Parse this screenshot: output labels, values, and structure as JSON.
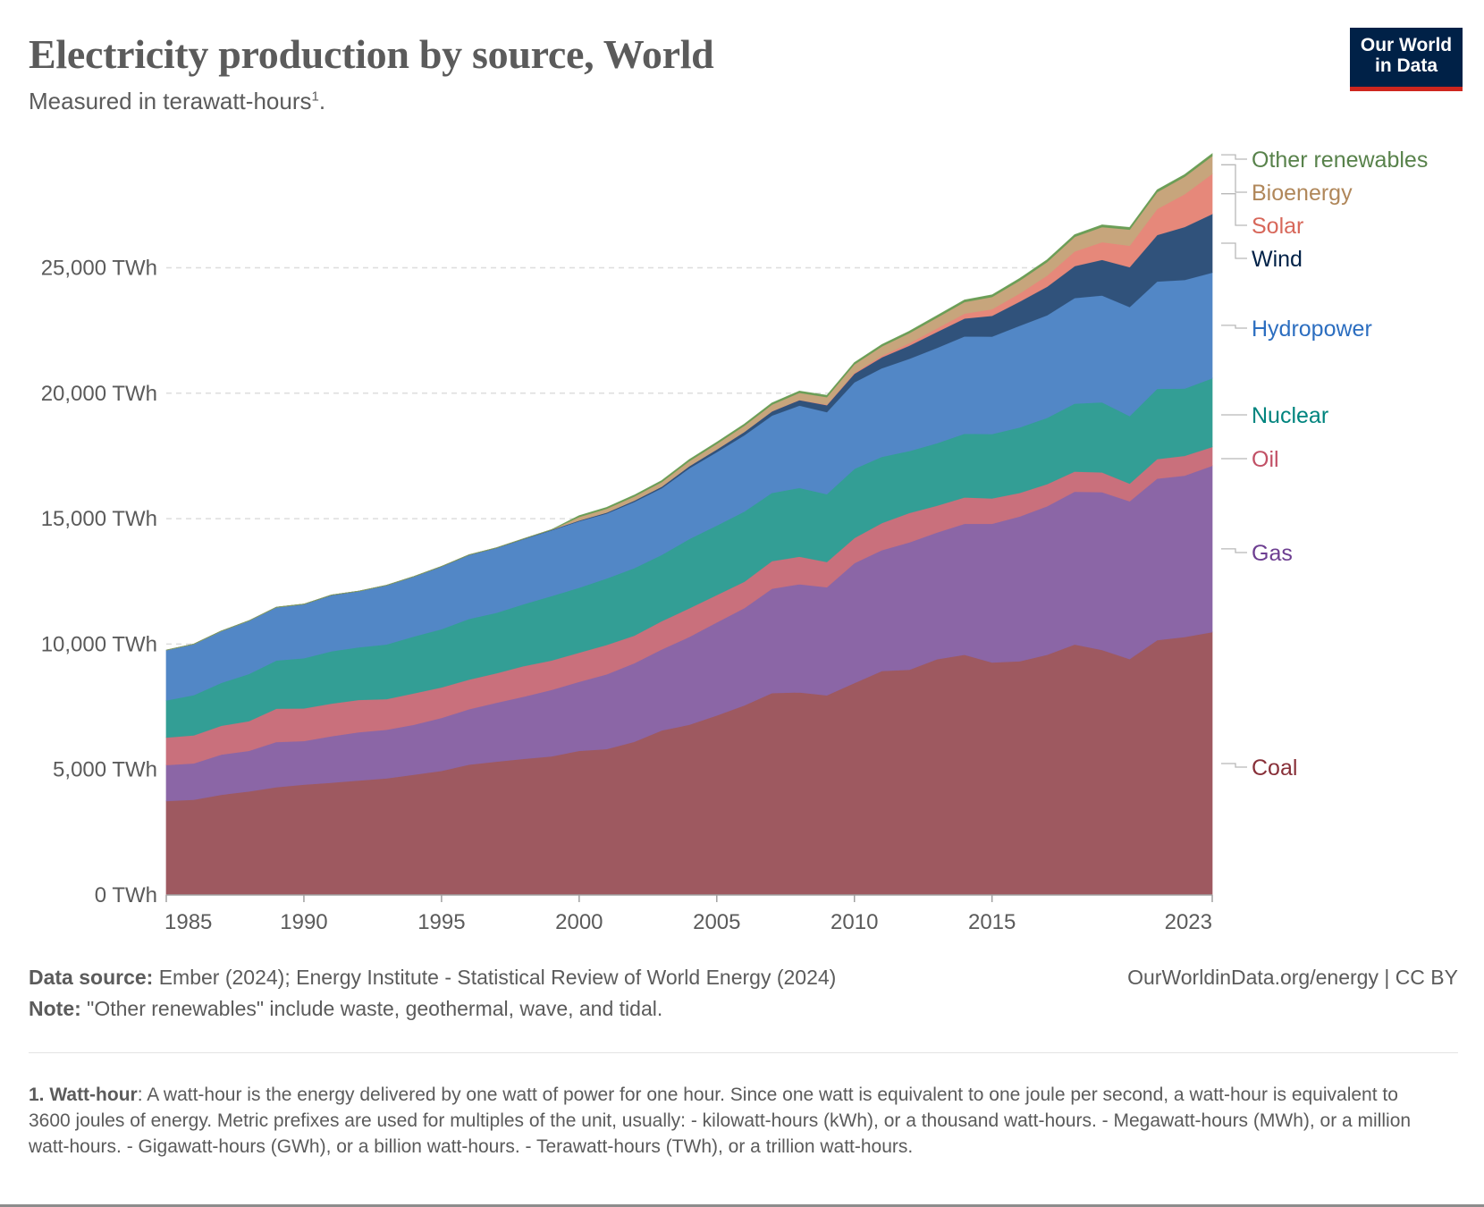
{
  "header": {
    "title": "Electricity production by source, World",
    "subtitle": "Measured in terawatt-hours",
    "subtitle_footnote_mark": "1",
    "subtitle_end": ".",
    "logo_line1": "Our World",
    "logo_line2": "in Data"
  },
  "footer": {
    "source_label": "Data source:",
    "source_text": " Ember (2024); Energy Institute - Statistical Review of World Energy (2024)",
    "note_label": "Note:",
    "note_text": " \"Other renewables\" include waste, geothermal, wave, and tidal.",
    "credit": "OurWorldinData.org/energy | CC BY",
    "footnote_label": "1. Watt-hour",
    "footnote_text": ": A watt-hour is the energy delivered by one watt of power for one hour. Since one watt is equivalent to one joule per second, a watt-hour is equivalent to 3600 joules of energy. Metric prefixes are used for multiples of the unit, usually: - kilowatt-hours (kWh), or a thousand watt-hours. - Megawatt-hours (MWh), or a million watt-hours. - Gigawatt-hours (GWh), or a billion watt-hours. - Terawatt-hours (TWh), or a trillion watt-hours."
  },
  "chart_data": {
    "type": "area",
    "stacked": true,
    "title": "Electricity production by source, World",
    "xlabel": "",
    "ylabel": "TWh",
    "xlim": [
      1985,
      2023
    ],
    "ylim": [
      0,
      29500
    ],
    "grid": "horizontal-dashed",
    "legend": "right (inline labels)",
    "x_ticks": [
      "1985",
      "1990",
      "1995",
      "2000",
      "2005",
      "2010",
      "2015",
      "2023"
    ],
    "x_tick_values": [
      1985,
      1990,
      1995,
      2000,
      2005,
      2010,
      2015,
      2023
    ],
    "y_ticks": [
      "0 TWh",
      "5,000 TWh",
      "10,000 TWh",
      "15,000 TWh",
      "20,000 TWh",
      "25,000 TWh"
    ],
    "y_tick_values": [
      0,
      5000,
      10000,
      15000,
      20000,
      25000
    ],
    "x": [
      1985,
      1986,
      1987,
      1988,
      1989,
      1990,
      1991,
      1992,
      1993,
      1994,
      1995,
      1996,
      1997,
      1998,
      1999,
      2000,
      2001,
      2002,
      2003,
      2004,
      2005,
      2006,
      2007,
      2008,
      2009,
      2010,
      2011,
      2012,
      2013,
      2014,
      2015,
      2016,
      2017,
      2018,
      2019,
      2020,
      2021,
      2022,
      2023
    ],
    "series": [
      {
        "name": "Coal",
        "color": "#9e5960",
        "label_color": "#883039",
        "values": [
          3750,
          3800,
          4000,
          4130,
          4300,
          4400,
          4480,
          4570,
          4650,
          4800,
          4950,
          5200,
          5320,
          5430,
          5530,
          5750,
          5820,
          6110,
          6560,
          6790,
          7160,
          7560,
          8050,
          8080,
          7960,
          8450,
          8930,
          8980,
          9400,
          9580,
          9270,
          9320,
          9580,
          9990,
          9770,
          9410,
          10160,
          10290,
          10480
        ]
      },
      {
        "name": "Gas",
        "color": "#8b66a6",
        "label_color": "#6d3e91",
        "values": [
          1430,
          1450,
          1600,
          1620,
          1800,
          1740,
          1850,
          1920,
          1940,
          1990,
          2110,
          2210,
          2350,
          2480,
          2650,
          2750,
          2980,
          3130,
          3230,
          3500,
          3710,
          3880,
          4160,
          4310,
          4310,
          4780,
          4820,
          5080,
          5050,
          5220,
          5530,
          5770,
          5920,
          6090,
          6290,
          6290,
          6440,
          6430,
          6630
        ]
      },
      {
        "name": "Oil",
        "color": "#c9707c",
        "label_color": "#c15065",
        "values": [
          1100,
          1120,
          1150,
          1180,
          1330,
          1300,
          1300,
          1290,
          1220,
          1250,
          1220,
          1180,
          1170,
          1220,
          1170,
          1160,
          1170,
          1100,
          1130,
          1140,
          1090,
          1050,
          1100,
          1100,
          1010,
          1000,
          1080,
          1170,
          1070,
          1050,
          1010,
          940,
          880,
          800,
          790,
          700,
          780,
          790,
          750
        ]
      },
      {
        "name": "Nuclear",
        "color": "#339e95",
        "label_color": "#00847e",
        "values": [
          1480,
          1600,
          1710,
          1880,
          1920,
          2000,
          2090,
          2100,
          2180,
          2270,
          2320,
          2420,
          2410,
          2470,
          2570,
          2590,
          2650,
          2690,
          2640,
          2760,
          2770,
          2800,
          2720,
          2740,
          2700,
          2760,
          2640,
          2470,
          2490,
          2540,
          2570,
          2610,
          2640,
          2710,
          2790,
          2690,
          2800,
          2680,
          2740
        ]
      },
      {
        "name": "Hydropower",
        "color": "#5287c6",
        "label_color": "#2c6ec0",
        "values": [
          2000,
          2030,
          2060,
          2120,
          2120,
          2150,
          2230,
          2230,
          2350,
          2380,
          2490,
          2540,
          2580,
          2590,
          2620,
          2650,
          2590,
          2640,
          2660,
          2820,
          2930,
          3040,
          3080,
          3280,
          3270,
          3450,
          3530,
          3680,
          3800,
          3880,
          3880,
          4050,
          4090,
          4210,
          4260,
          4350,
          4280,
          4330,
          4210
        ]
      },
      {
        "name": "Wind",
        "color": "#30527b",
        "label_color": "#002147",
        "values": [
          0,
          0,
          0,
          0,
          0,
          4,
          5,
          5,
          6,
          7,
          8,
          9,
          12,
          16,
          21,
          31,
          38,
          52,
          63,
          85,
          104,
          133,
          170,
          219,
          276,
          342,
          437,
          522,
          640,
          712,
          831,
          962,
          1140,
          1270,
          1420,
          1590,
          1850,
          2110,
          2340
        ]
      },
      {
        "name": "Solar",
        "color": "#e6887a",
        "label_color": "#d7675a",
        "values": [
          0,
          0,
          0,
          0,
          0,
          0,
          0,
          0,
          0,
          0,
          0,
          0,
          0,
          0,
          0,
          1,
          1,
          2,
          2,
          3,
          4,
          6,
          8,
          12,
          21,
          33,
          64,
          100,
          140,
          198,
          261,
          330,
          446,
          585,
          705,
          855,
          1040,
          1310,
          1600
        ]
      },
      {
        "name": "Bioenergy",
        "color": "#c7a57c",
        "label_color": "#b0875a",
        "values": [
          0,
          0,
          0,
          0,
          0,
          0,
          0,
          0,
          0,
          0,
          0,
          0,
          0,
          0,
          0,
          140,
          150,
          160,
          180,
          200,
          220,
          240,
          260,
          280,
          300,
          340,
          370,
          400,
          430,
          460,
          490,
          510,
          540,
          580,
          600,
          640,
          670,
          690,
          710
        ]
      },
      {
        "name": "Other renewables",
        "color": "#6b9e57",
        "label_color": "#58824b",
        "values": [
          0,
          0,
          0,
          0,
          0,
          0,
          0,
          0,
          0,
          0,
          0,
          0,
          0,
          0,
          0,
          50,
          50,
          52,
          52,
          56,
          58,
          60,
          62,
          64,
          66,
          68,
          70,
          72,
          74,
          76,
          78,
          80,
          80,
          82,
          84,
          84,
          86,
          87,
          88
        ]
      }
    ]
  }
}
